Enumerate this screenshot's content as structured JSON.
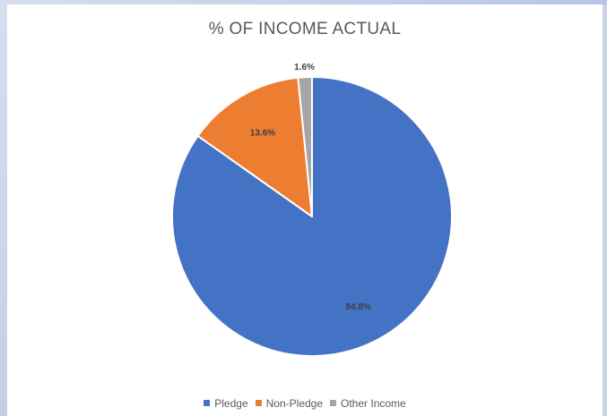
{
  "chart_data": {
    "type": "pie",
    "title": "% OF INCOME ACTUAL",
    "categories": [
      "Pledge",
      "Non-Pledge",
      "Other Income"
    ],
    "values": [
      84.8,
      13.6,
      1.6
    ],
    "data_labels": [
      "84.8%",
      "13.6%",
      "1.6%"
    ],
    "colors": [
      "#4472c4",
      "#ed7d31",
      "#a5a5a5"
    ],
    "legend_position": "bottom"
  }
}
